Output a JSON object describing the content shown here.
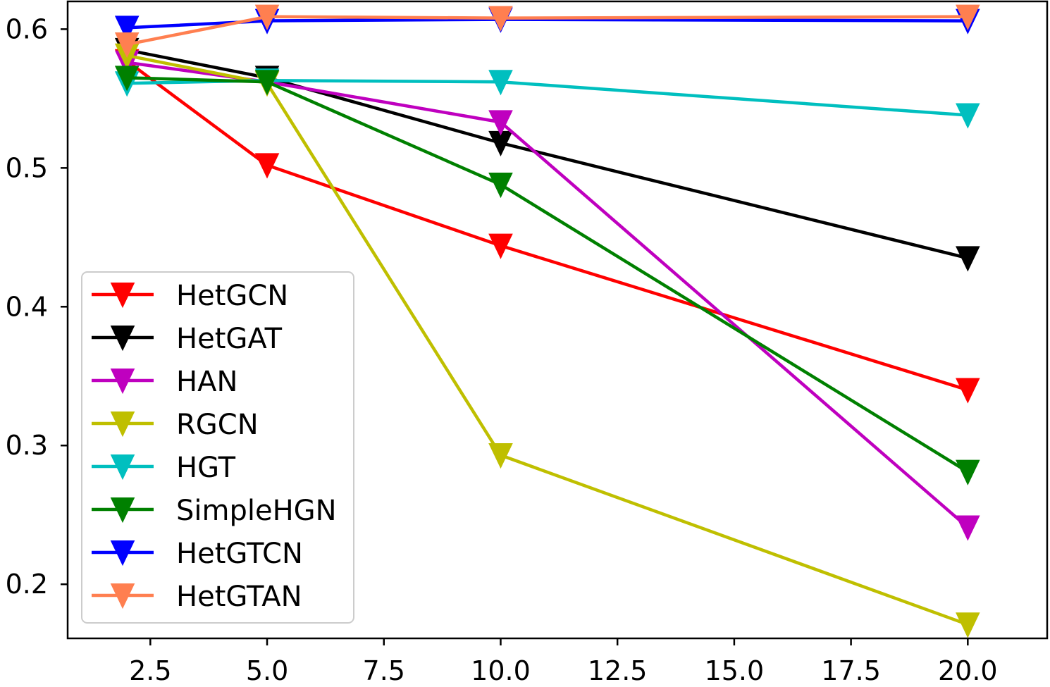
{
  "chart_data": {
    "type": "line",
    "title": "",
    "xlabel": "",
    "ylabel": "",
    "x": [
      2,
      5,
      10,
      20
    ],
    "xlim": [
      0.73,
      21.7
    ],
    "ylim": [
      0.161,
      0.62
    ],
    "xticks": [
      2.5,
      5.0,
      7.5,
      10.0,
      12.5,
      15.0,
      17.5,
      20.0
    ],
    "xtick_labels": [
      "2.5",
      "5.0",
      "7.5",
      "10.0",
      "12.5",
      "15.0",
      "17.5",
      "20.0"
    ],
    "yticks": [
      0.2,
      0.3,
      0.4,
      0.5,
      0.6
    ],
    "ytick_labels": [
      "0.2",
      "0.3",
      "0.4",
      "0.5",
      "0.6"
    ],
    "grid": false,
    "legend_position": "lower-left",
    "marker": "triangle-down",
    "series": [
      {
        "name": "HetGCN",
        "color": "#ff0000",
        "values": [
          0.577,
          0.502,
          0.444,
          0.34
        ]
      },
      {
        "name": "HetGAT",
        "color": "#000000",
        "values": [
          0.585,
          0.565,
          0.518,
          0.435
        ]
      },
      {
        "name": "HAN",
        "color": "#bf00bf",
        "values": [
          0.576,
          0.562,
          0.533,
          0.241
        ]
      },
      {
        "name": "RGCN",
        "color": "#bfbf00",
        "values": [
          0.581,
          0.561,
          0.293,
          0.171
        ]
      },
      {
        "name": "HGT",
        "color": "#00bfbf",
        "values": [
          0.561,
          0.563,
          0.562,
          0.538
        ]
      },
      {
        "name": "SimpleHGN",
        "color": "#008000",
        "values": [
          0.565,
          0.562,
          0.488,
          0.281
        ]
      },
      {
        "name": "HetGTCN",
        "color": "#0000ff",
        "values": [
          0.601,
          0.606,
          0.607,
          0.606
        ]
      },
      {
        "name": "HetGTAN",
        "color": "#ff7f50",
        "values": [
          0.589,
          0.609,
          0.608,
          0.609
        ]
      }
    ]
  }
}
